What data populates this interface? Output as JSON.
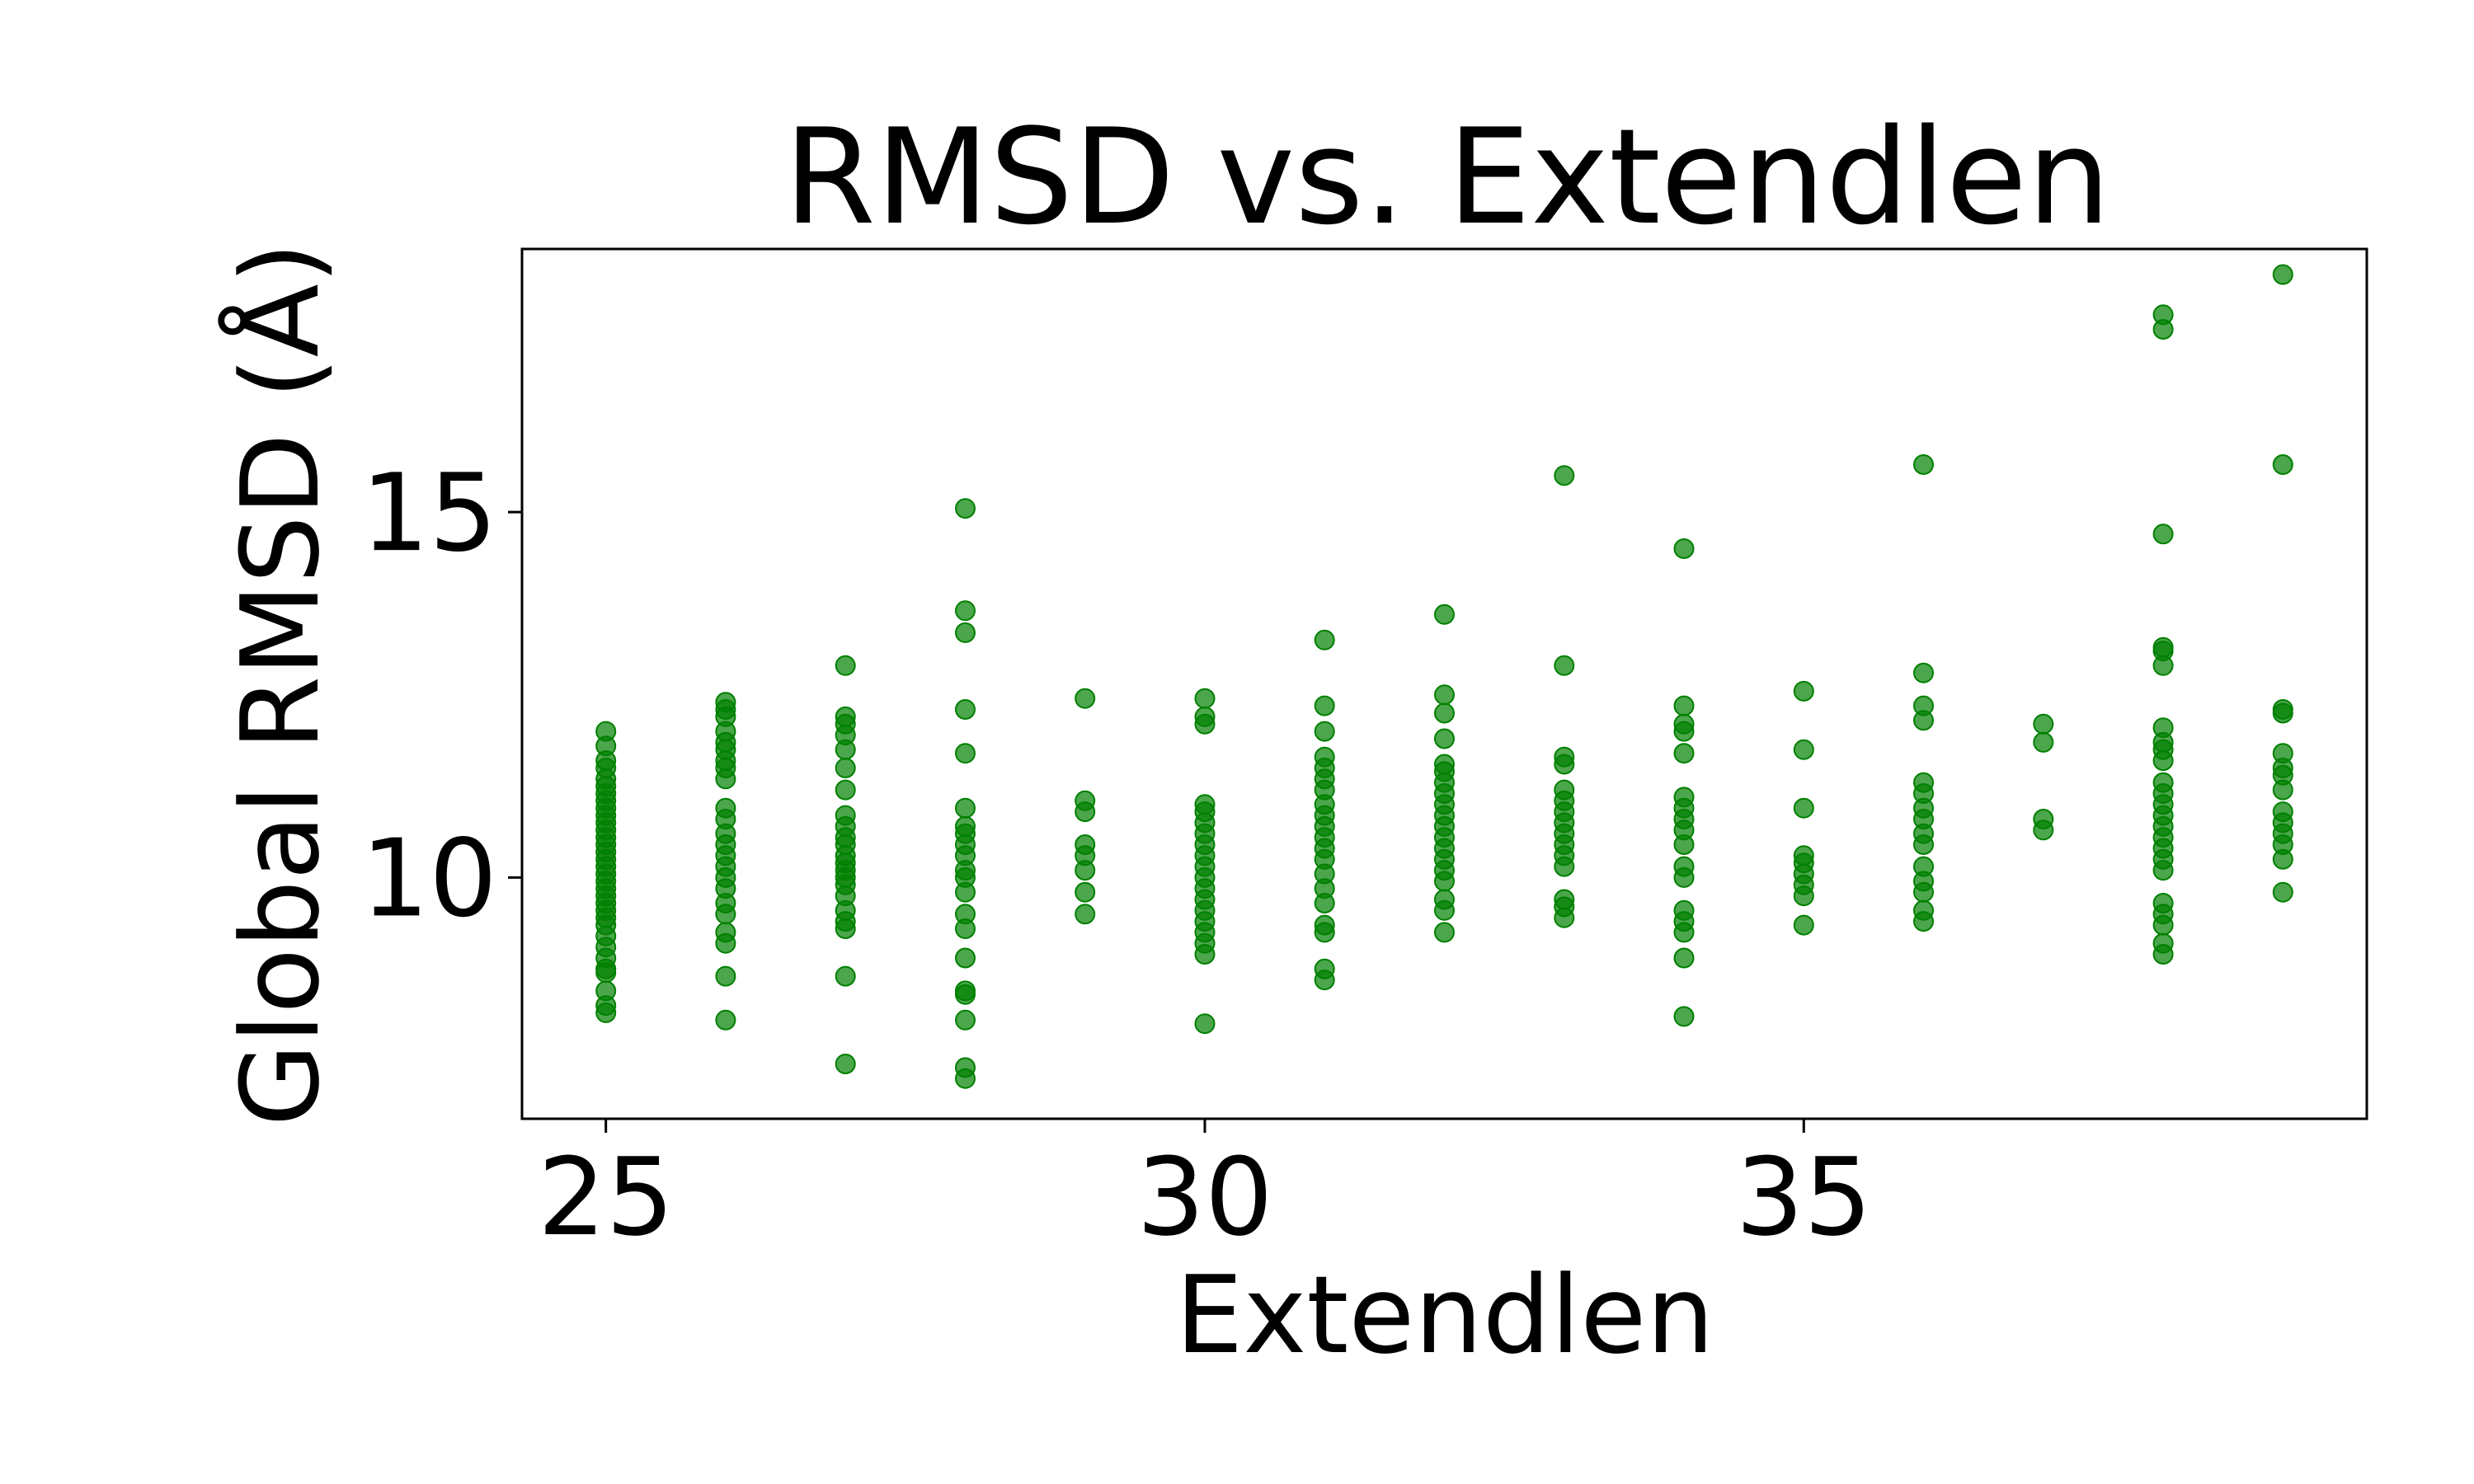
{
  "chart_data": {
    "type": "scatter",
    "title": "RMSD vs. Extendlen",
    "xlabel": "Extendlen",
    "ylabel": "Global RMSD (Å)",
    "xlim": [
      24.3,
      39.7
    ],
    "ylim": [
      6.7,
      18.6
    ],
    "xticks": [
      25,
      30,
      35
    ],
    "yticks": [
      10,
      15
    ],
    "grid": false,
    "legend": "none",
    "colors": {
      "point": "#008000",
      "axes": "#000000"
    },
    "series": [
      {
        "points": [
          [
            25,
            8.15
          ],
          [
            25,
            8.25
          ],
          [
            25,
            8.45
          ],
          [
            25,
            8.7
          ],
          [
            25,
            8.75
          ],
          [
            25,
            8.9
          ],
          [
            25,
            9.05
          ],
          [
            25,
            9.2
          ],
          [
            25,
            9.35
          ],
          [
            25,
            9.45
          ],
          [
            25,
            9.55
          ],
          [
            25,
            9.65
          ],
          [
            25,
            9.75
          ],
          [
            25,
            9.85
          ],
          [
            25,
            9.95
          ],
          [
            25,
            10.05
          ],
          [
            25,
            10.15
          ],
          [
            25,
            10.25
          ],
          [
            25,
            10.35
          ],
          [
            25,
            10.45
          ],
          [
            25,
            10.55
          ],
          [
            25,
            10.65
          ],
          [
            25,
            10.75
          ],
          [
            25,
            10.85
          ],
          [
            25,
            10.95
          ],
          [
            25,
            11.05
          ],
          [
            25,
            11.15
          ],
          [
            25,
            11.25
          ],
          [
            25,
            11.35
          ],
          [
            25,
            11.5
          ],
          [
            25,
            11.6
          ],
          [
            25,
            11.8
          ],
          [
            25,
            12.0
          ],
          [
            26,
            8.05
          ],
          [
            26,
            8.65
          ],
          [
            26,
            9.1
          ],
          [
            26,
            9.25
          ],
          [
            26,
            9.5
          ],
          [
            26,
            9.65
          ],
          [
            26,
            9.85
          ],
          [
            26,
            10.0
          ],
          [
            26,
            10.15
          ],
          [
            26,
            10.3
          ],
          [
            26,
            10.45
          ],
          [
            26,
            10.6
          ],
          [
            26,
            10.8
          ],
          [
            26,
            10.95
          ],
          [
            26,
            11.35
          ],
          [
            26,
            11.5
          ],
          [
            26,
            11.6
          ],
          [
            26,
            11.75
          ],
          [
            26,
            11.85
          ],
          [
            26,
            12.0
          ],
          [
            26,
            12.2
          ],
          [
            26,
            12.3
          ],
          [
            26,
            12.4
          ],
          [
            27,
            7.45
          ],
          [
            27,
            8.65
          ],
          [
            27,
            9.3
          ],
          [
            27,
            9.4
          ],
          [
            27,
            9.55
          ],
          [
            27,
            9.75
          ],
          [
            27,
            9.9
          ],
          [
            27,
            10.0
          ],
          [
            27,
            10.1
          ],
          [
            27,
            10.2
          ],
          [
            27,
            10.3
          ],
          [
            27,
            10.45
          ],
          [
            27,
            10.55
          ],
          [
            27,
            10.7
          ],
          [
            27,
            10.85
          ],
          [
            27,
            11.2
          ],
          [
            27,
            11.5
          ],
          [
            27,
            11.75
          ],
          [
            27,
            11.95
          ],
          [
            27,
            12.1
          ],
          [
            27,
            12.2
          ],
          [
            27,
            12.9
          ],
          [
            28,
            7.25
          ],
          [
            28,
            7.4
          ],
          [
            28,
            8.05
          ],
          [
            28,
            8.4
          ],
          [
            28,
            8.45
          ],
          [
            28,
            8.9
          ],
          [
            28,
            9.3
          ],
          [
            28,
            9.5
          ],
          [
            28,
            9.8
          ],
          [
            28,
            10.0
          ],
          [
            28,
            10.1
          ],
          [
            28,
            10.3
          ],
          [
            28,
            10.45
          ],
          [
            28,
            10.6
          ],
          [
            28,
            10.7
          ],
          [
            28,
            10.95
          ],
          [
            28,
            11.7
          ],
          [
            28,
            12.3
          ],
          [
            28,
            13.35
          ],
          [
            28,
            13.65
          ],
          [
            28,
            15.05
          ],
          [
            29,
            9.5
          ],
          [
            29,
            9.8
          ],
          [
            29,
            10.1
          ],
          [
            29,
            10.3
          ],
          [
            29,
            10.45
          ],
          [
            29,
            10.9
          ],
          [
            29,
            11.05
          ],
          [
            29,
            12.45
          ],
          [
            30,
            8.0
          ],
          [
            30,
            8.95
          ],
          [
            30,
            9.1
          ],
          [
            30,
            9.25
          ],
          [
            30,
            9.4
          ],
          [
            30,
            9.55
          ],
          [
            30,
            9.7
          ],
          [
            30,
            9.85
          ],
          [
            30,
            10.0
          ],
          [
            30,
            10.15
          ],
          [
            30,
            10.3
          ],
          [
            30,
            10.45
          ],
          [
            30,
            10.6
          ],
          [
            30,
            10.75
          ],
          [
            30,
            10.9
          ],
          [
            30,
            11.0
          ],
          [
            30,
            12.1
          ],
          [
            30,
            12.2
          ],
          [
            30,
            12.45
          ],
          [
            31,
            8.6
          ],
          [
            31,
            8.75
          ],
          [
            31,
            9.25
          ],
          [
            31,
            9.35
          ],
          [
            31,
            9.65
          ],
          [
            31,
            9.85
          ],
          [
            31,
            10.05
          ],
          [
            31,
            10.25
          ],
          [
            31,
            10.4
          ],
          [
            31,
            10.55
          ],
          [
            31,
            10.7
          ],
          [
            31,
            10.85
          ],
          [
            31,
            11.0
          ],
          [
            31,
            11.2
          ],
          [
            31,
            11.35
          ],
          [
            31,
            11.5
          ],
          [
            31,
            11.65
          ],
          [
            31,
            12.0
          ],
          [
            31,
            12.35
          ],
          [
            31,
            13.25
          ],
          [
            32,
            9.25
          ],
          [
            32,
            9.55
          ],
          [
            32,
            9.7
          ],
          [
            32,
            9.95
          ],
          [
            32,
            10.1
          ],
          [
            32,
            10.25
          ],
          [
            32,
            10.4
          ],
          [
            32,
            10.55
          ],
          [
            32,
            10.7
          ],
          [
            32,
            10.85
          ],
          [
            32,
            11.0
          ],
          [
            32,
            11.15
          ],
          [
            32,
            11.3
          ],
          [
            32,
            11.45
          ],
          [
            32,
            11.55
          ],
          [
            32,
            11.9
          ],
          [
            32,
            12.25
          ],
          [
            32,
            12.5
          ],
          [
            32,
            13.6
          ],
          [
            33,
            9.45
          ],
          [
            33,
            9.6
          ],
          [
            33,
            9.7
          ],
          [
            33,
            10.15
          ],
          [
            33,
            10.3
          ],
          [
            33,
            10.45
          ],
          [
            33,
            10.6
          ],
          [
            33,
            10.75
          ],
          [
            33,
            10.9
          ],
          [
            33,
            11.05
          ],
          [
            33,
            11.2
          ],
          [
            33,
            11.55
          ],
          [
            33,
            11.65
          ],
          [
            33,
            12.9
          ],
          [
            33,
            15.5
          ],
          [
            34,
            8.1
          ],
          [
            34,
            8.9
          ],
          [
            34,
            9.25
          ],
          [
            34,
            9.4
          ],
          [
            34,
            9.55
          ],
          [
            34,
            10.0
          ],
          [
            34,
            10.15
          ],
          [
            34,
            10.45
          ],
          [
            34,
            10.65
          ],
          [
            34,
            10.8
          ],
          [
            34,
            10.95
          ],
          [
            34,
            11.1
          ],
          [
            34,
            11.7
          ],
          [
            34,
            12.0
          ],
          [
            34,
            12.1
          ],
          [
            34,
            12.35
          ],
          [
            34,
            14.5
          ],
          [
            35,
            9.35
          ],
          [
            35,
            9.75
          ],
          [
            35,
            9.9
          ],
          [
            35,
            10.05
          ],
          [
            35,
            10.2
          ],
          [
            35,
            10.3
          ],
          [
            35,
            10.95
          ],
          [
            35,
            11.75
          ],
          [
            35,
            12.55
          ],
          [
            36,
            9.4
          ],
          [
            36,
            9.55
          ],
          [
            36,
            9.8
          ],
          [
            36,
            9.95
          ],
          [
            36,
            10.15
          ],
          [
            36,
            10.45
          ],
          [
            36,
            10.6
          ],
          [
            36,
            10.8
          ],
          [
            36,
            10.95
          ],
          [
            36,
            11.15
          ],
          [
            36,
            11.3
          ],
          [
            36,
            12.15
          ],
          [
            36,
            12.35
          ],
          [
            36,
            12.8
          ],
          [
            36,
            15.65
          ],
          [
            37,
            10.65
          ],
          [
            37,
            10.8
          ],
          [
            37,
            11.85
          ],
          [
            37,
            12.1
          ],
          [
            38,
            8.95
          ],
          [
            38,
            9.1
          ],
          [
            38,
            9.35
          ],
          [
            38,
            9.5
          ],
          [
            38,
            9.65
          ],
          [
            38,
            10.1
          ],
          [
            38,
            10.25
          ],
          [
            38,
            10.4
          ],
          [
            38,
            10.55
          ],
          [
            38,
            10.7
          ],
          [
            38,
            10.85
          ],
          [
            38,
            11.0
          ],
          [
            38,
            11.15
          ],
          [
            38,
            11.3
          ],
          [
            38,
            11.6
          ],
          [
            38,
            11.75
          ],
          [
            38,
            11.85
          ],
          [
            38,
            12.05
          ],
          [
            38,
            12.9
          ],
          [
            38,
            13.1
          ],
          [
            38,
            13.15
          ],
          [
            38,
            14.7
          ],
          [
            38,
            17.5
          ],
          [
            38,
            17.7
          ],
          [
            39,
            9.8
          ],
          [
            39,
            10.25
          ],
          [
            39,
            10.45
          ],
          [
            39,
            10.6
          ],
          [
            39,
            10.75
          ],
          [
            39,
            10.9
          ],
          [
            39,
            11.2
          ],
          [
            39,
            11.4
          ],
          [
            39,
            11.5
          ],
          [
            39,
            11.7
          ],
          [
            39,
            12.25
          ],
          [
            39,
            12.3
          ],
          [
            39,
            15.65
          ],
          [
            39,
            18.25
          ]
        ]
      }
    ]
  }
}
